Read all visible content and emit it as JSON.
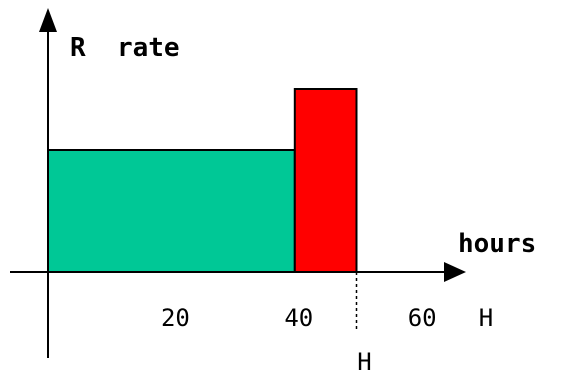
{
  "chart_data": {
    "type": "bar",
    "xlabel": "hours",
    "ylabel": "R  rate",
    "x_tick_labels": [
      "20",
      "40",
      "60"
    ],
    "x_end_label": "H",
    "marker_label": "H",
    "bars": [
      {
        "name": "",
        "x_start": 0,
        "x_end": 40,
        "height": 2,
        "color": "#00c896"
      },
      {
        "name": "",
        "x_start": 40,
        "x_end": 50,
        "height": 3,
        "color": "#ff0000"
      }
    ],
    "marker_x": 50,
    "xlim": [
      0,
      70
    ],
    "ylim": [
      0,
      4
    ],
    "grid": false,
    "legend": "none"
  }
}
